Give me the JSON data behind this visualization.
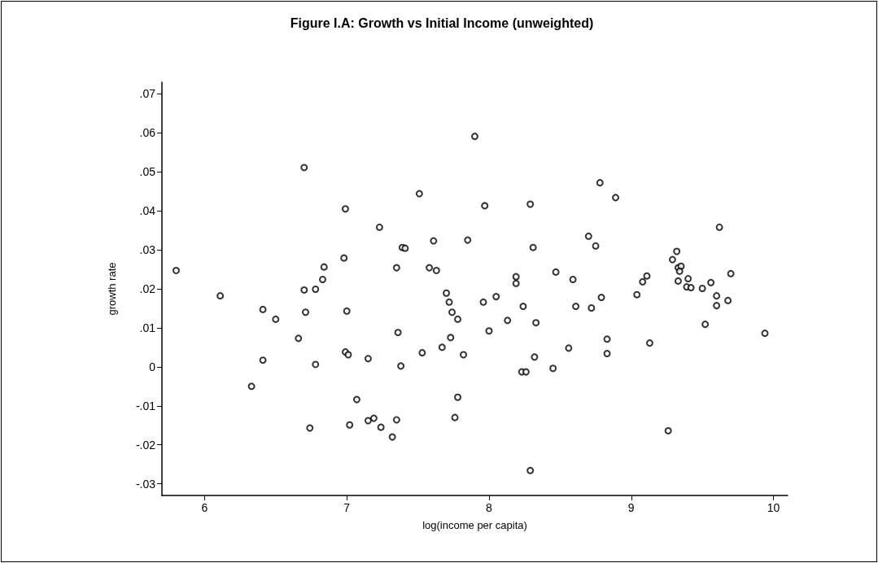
{
  "chart_data": {
    "type": "scatter",
    "title": "Figure I.A: Growth vs Initial Income (unweighted)",
    "xlabel": "log(income per capita)",
    "ylabel": "growth rate",
    "xlim": [
      5.7,
      10.1
    ],
    "xticks": [
      6,
      7,
      8,
      9,
      10
    ],
    "ylim": [
      -0.033,
      0.073
    ],
    "yticks": [
      {
        "value": -0.03,
        "label": "-.03"
      },
      {
        "value": -0.02,
        "label": "-.02"
      },
      {
        "value": -0.01,
        "label": "-.01"
      },
      {
        "value": 0,
        "label": "0"
      },
      {
        "value": 0.01,
        "label": ".01"
      },
      {
        "value": 0.02,
        "label": ".02"
      },
      {
        "value": 0.03,
        "label": ".03"
      },
      {
        "value": 0.04,
        "label": ".04"
      },
      {
        "value": 0.05,
        "label": ".05"
      },
      {
        "value": 0.06,
        "label": ".06"
      },
      {
        "value": 0.07,
        "label": ".07"
      }
    ],
    "grid": false,
    "marker": "circle",
    "series": [
      {
        "color": "#000000",
        "x": [
          5.8,
          6.7,
          6.99,
          7.23,
          6.98,
          6.84,
          7.35,
          6.83,
          6.7,
          6.78,
          7.39,
          6.11,
          6.41,
          6.5,
          6.71,
          7.0,
          6.66,
          6.99,
          7.01,
          7.15,
          6.41,
          6.78,
          7.36,
          7.38,
          6.33,
          7.07,
          7.15,
          7.19,
          7.35,
          7.02,
          6.74,
          7.24,
          7.32,
          7.9,
          7.51,
          8.78,
          8.89,
          7.97,
          8.29,
          7.61,
          7.85,
          7.41,
          8.31,
          8.7,
          8.75,
          7.58,
          7.63,
          8.19,
          8.19,
          8.47,
          8.59,
          7.7,
          7.72,
          7.96,
          8.05,
          7.74,
          7.78,
          8.24,
          8.13,
          8.33,
          8.61,
          8.72,
          8.79,
          8.0,
          7.73,
          7.67,
          7.53,
          7.82,
          8.56,
          8.32,
          8.45,
          8.83,
          8.83,
          8.23,
          8.26,
          7.78,
          7.76,
          8.29,
          9.62,
          9.32,
          9.29,
          9.33,
          9.35,
          9.34,
          9.11,
          9.08,
          9.33,
          9.4,
          9.7,
          9.56,
          9.39,
          9.42,
          9.5,
          9.04,
          9.6,
          9.68,
          9.6,
          9.52,
          9.94,
          9.13,
          9.26
        ],
        "values": [
          0.0247,
          0.0511,
          0.0405,
          0.0358,
          0.0279,
          0.0256,
          0.0254,
          0.0224,
          0.0197,
          0.0199,
          0.0306,
          0.0182,
          0.0147,
          0.0122,
          0.014,
          0.0143,
          0.0073,
          0.0038,
          0.0031,
          0.0021,
          0.0017,
          0.0006,
          0.0088,
          0.0002,
          -0.005,
          -0.0084,
          -0.0138,
          -0.0132,
          -0.0136,
          -0.0149,
          -0.0157,
          -0.0155,
          -0.018,
          0.0591,
          0.0444,
          0.0472,
          0.0434,
          0.0413,
          0.0417,
          0.0323,
          0.0325,
          0.0304,
          0.0306,
          0.0335,
          0.031,
          0.0254,
          0.0247,
          0.0231,
          0.0214,
          0.0243,
          0.0224,
          0.0189,
          0.0166,
          0.0166,
          0.018,
          0.014,
          0.0122,
          0.0155,
          0.0119,
          0.0113,
          0.0155,
          0.0151,
          0.0178,
          0.0092,
          0.0075,
          0.005,
          0.0036,
          0.0031,
          0.0048,
          0.0025,
          -0.0004,
          0.0071,
          0.0034,
          -0.0013,
          -0.0013,
          -0.0078,
          -0.013,
          -0.0266,
          0.0358,
          0.0296,
          0.0275,
          0.0254,
          0.0258,
          0.0245,
          0.0233,
          0.0218,
          0.022,
          0.0226,
          0.0239,
          0.0216,
          0.0205,
          0.0203,
          0.0201,
          0.0185,
          0.0182,
          0.017,
          0.0157,
          0.0109,
          0.0086,
          0.0061,
          -0.0164
        ]
      }
    ]
  }
}
